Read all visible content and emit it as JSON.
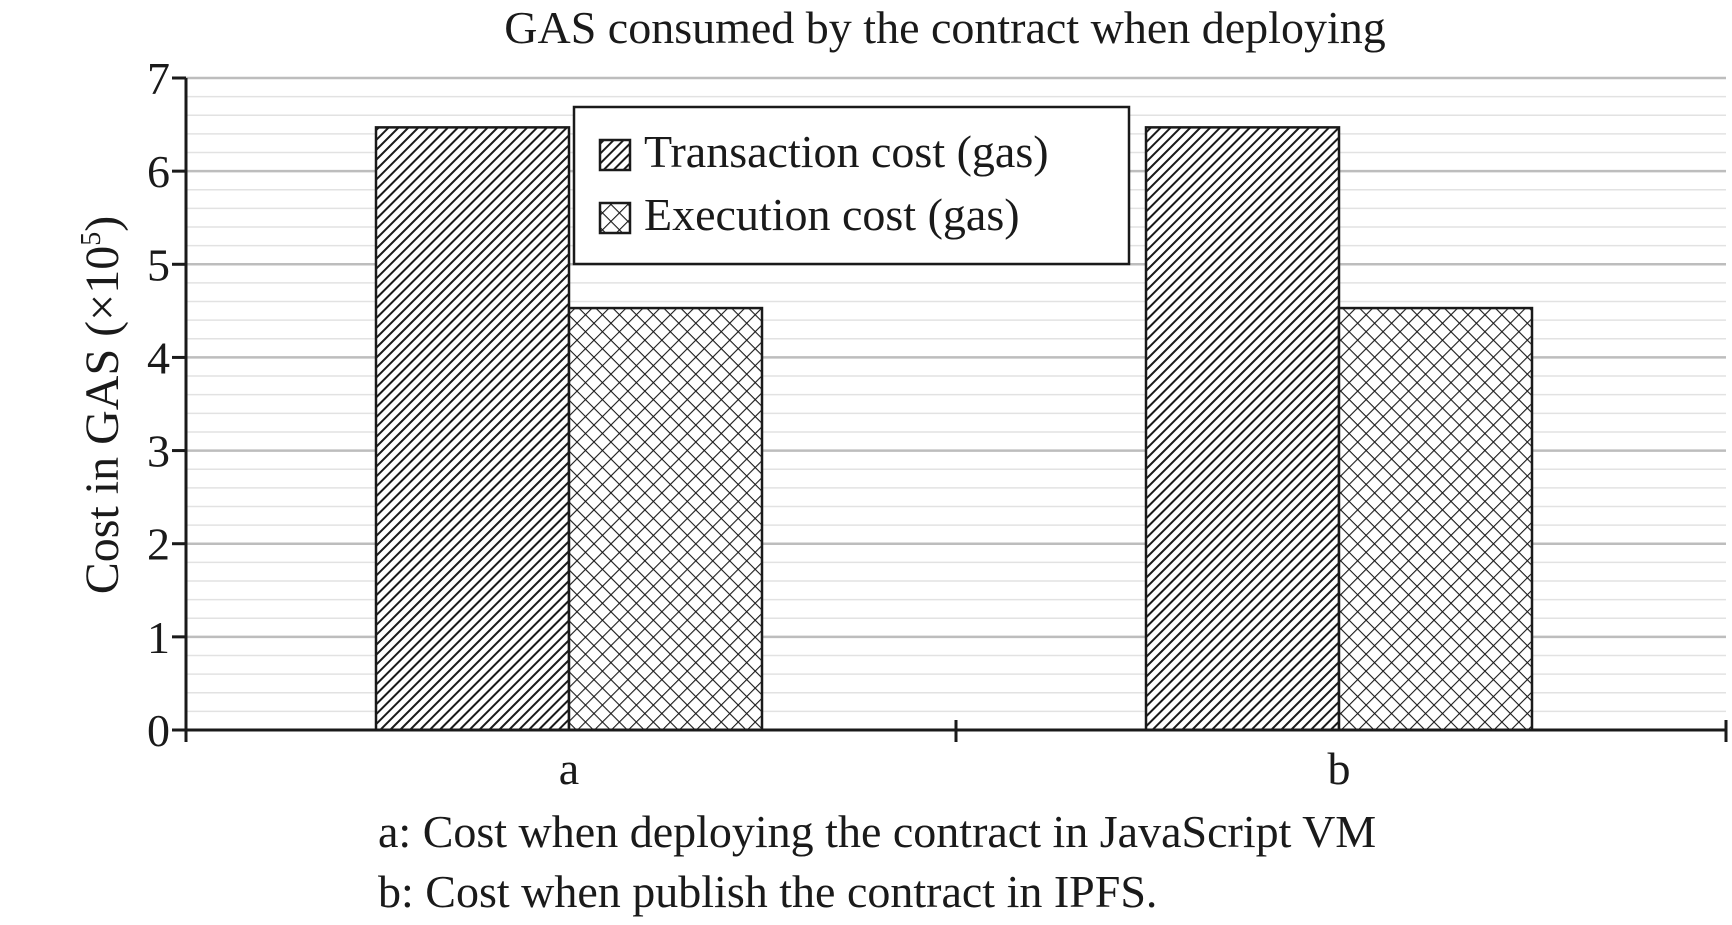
{
  "chart_data": {
    "type": "bar",
    "title": "GAS consumed by the contract when deploying",
    "xlabel": "",
    "ylabel": "Cost in GAS (×10",
    "ylabel_superscript": "5",
    "ylabel_suffix": ")",
    "ylim": [
      0,
      7
    ],
    "yticks": [
      "0",
      "1",
      "2",
      "3",
      "4",
      "5",
      "6",
      "7"
    ],
    "grid": true,
    "legend_position": "top-center",
    "categories": [
      "a",
      "b"
    ],
    "series": [
      {
        "name": "Transaction cost (gas)",
        "pattern": "diagonal-hatch",
        "values": [
          6.47,
          6.47
        ]
      },
      {
        "name": "Execution cost (gas)",
        "pattern": "crosshatch",
        "values": [
          4.53,
          4.53
        ]
      }
    ],
    "notes": [
      "a: Cost when deploying the contract in JavaScript VM",
      "b: Cost when publish the contract in IPFS."
    ],
    "colors": {
      "bar_stroke": "#1a1a1a",
      "grid_major": "#bdbdbd",
      "grid_minor": "#e2e2e2",
      "axis": "#1a1a1a"
    }
  }
}
